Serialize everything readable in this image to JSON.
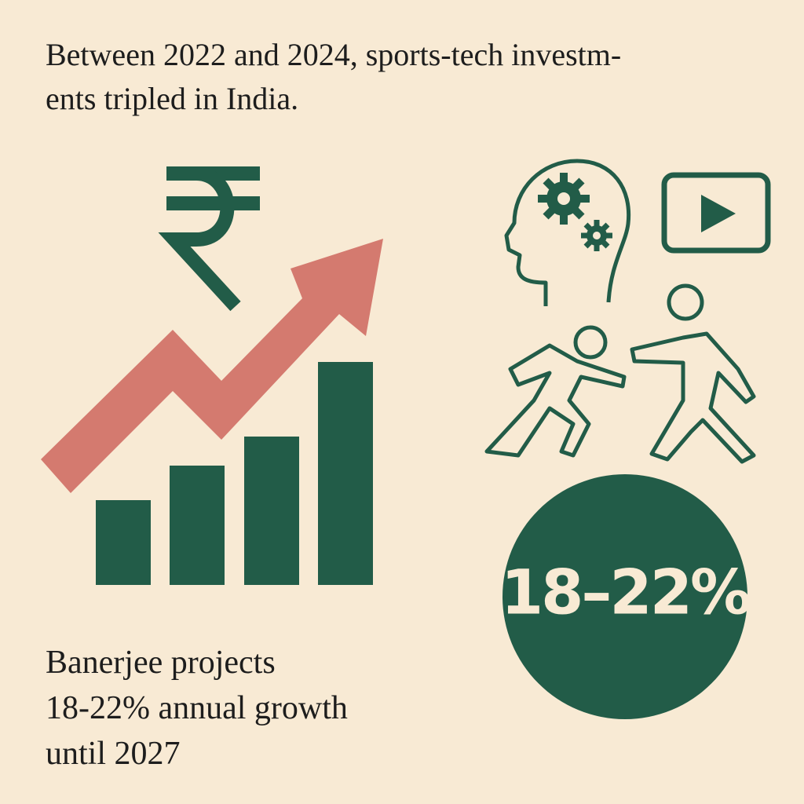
{
  "headline": [
    "Between 2022 and 2024, sports-tech investm-",
    "ents tripled in India."
  ],
  "caption": [
    "Banerjee projects",
    "18-22% annual growth",
    "until 2027"
  ],
  "badge": "18–22%"
}
